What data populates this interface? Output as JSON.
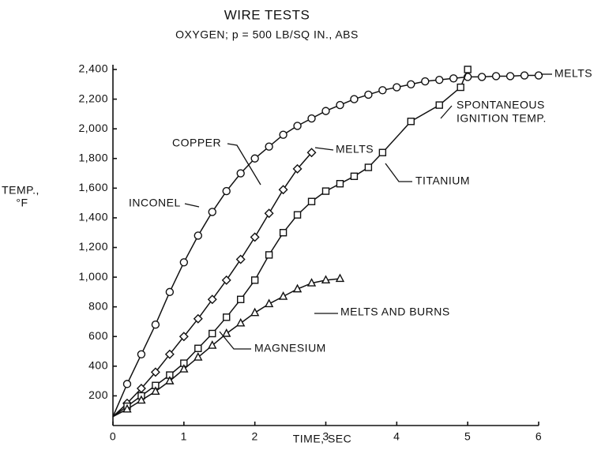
{
  "chart_data": {
    "type": "line",
    "title": "WIRE TESTS",
    "subtitle": "OXYGEN; p = 500 LB/SQ IN., ABS",
    "xlabel": "TIME, SEC",
    "ylabel": [
      "TEMP.,",
      "°F"
    ],
    "xlim": [
      0,
      6
    ],
    "xticks": [
      0,
      1,
      2,
      3,
      4,
      5,
      6
    ],
    "ylim": [
      0,
      2400
    ],
    "yticks": [
      200,
      400,
      600,
      800,
      {
        "value": 1000,
        "label": "1,000"
      },
      {
        "value": 1200,
        "label": "1,200"
      },
      {
        "value": 1400,
        "label": "1,400"
      },
      {
        "value": 1600,
        "label": "1,600"
      },
      {
        "value": 1800,
        "label": "1,800"
      },
      {
        "value": 2000,
        "label": "2,000"
      },
      {
        "value": 2200,
        "label": "2,200"
      },
      {
        "value": 2400,
        "label": "2,400"
      }
    ],
    "series": [
      {
        "name": "INCONEL",
        "color": "#111111",
        "marker": "circle",
        "x": [
          0,
          0.2,
          0.4,
          0.6,
          0.8,
          1.0,
          1.2,
          1.4,
          1.6,
          1.8,
          2.0,
          2.2,
          2.4,
          2.6,
          2.8,
          3.0,
          3.2,
          3.4,
          3.6,
          3.8,
          4.0,
          4.2,
          4.4,
          4.6,
          4.8,
          5.0,
          5.2,
          5.4,
          5.6,
          5.8,
          6.0
        ],
        "values": [
          60,
          280,
          480,
          680,
          900,
          1100,
          1280,
          1440,
          1580,
          1700,
          1800,
          1880,
          1960,
          2020,
          2070,
          2120,
          2160,
          2200,
          2230,
          2260,
          2280,
          2300,
          2320,
          2330,
          2340,
          2350,
          2350,
          2355,
          2355,
          2360,
          2360
        ]
      },
      {
        "name": "COPPER",
        "color": "#111111",
        "marker": "diamond",
        "x": [
          0,
          0.2,
          0.4,
          0.6,
          0.8,
          1.0,
          1.2,
          1.4,
          1.6,
          1.8,
          2.0,
          2.2,
          2.4,
          2.6,
          2.8
        ],
        "values": [
          60,
          150,
          250,
          360,
          480,
          600,
          720,
          850,
          980,
          1120,
          1270,
          1430,
          1590,
          1730,
          1840
        ]
      },
      {
        "name": "TITANIUM",
        "color": "#111111",
        "marker": "square",
        "x": [
          0,
          0.2,
          0.4,
          0.6,
          0.8,
          1.0,
          1.2,
          1.4,
          1.6,
          1.8,
          2.0,
          2.2,
          2.4,
          2.6,
          2.8,
          3.0,
          3.2,
          3.4,
          3.6,
          3.8,
          4.2,
          4.6,
          4.9,
          5.0
        ],
        "values": [
          60,
          130,
          200,
          270,
          340,
          420,
          520,
          620,
          730,
          850,
          980,
          1150,
          1300,
          1420,
          1510,
          1580,
          1630,
          1680,
          1740,
          1840,
          2050,
          2160,
          2280,
          2400
        ]
      },
      {
        "name": "MAGNESIUM",
        "color": "#111111",
        "marker": "triangle",
        "x": [
          0,
          0.2,
          0.4,
          0.6,
          0.8,
          1.0,
          1.2,
          1.4,
          1.6,
          1.8,
          2.0,
          2.2,
          2.4,
          2.6,
          2.8,
          3.0,
          3.2
        ],
        "values": [
          60,
          110,
          170,
          230,
          300,
          380,
          460,
          540,
          620,
          690,
          760,
          820,
          870,
          920,
          960,
          980,
          990
        ]
      }
    ],
    "annotations": [
      {
        "text": "MELTS"
      },
      {
        "text": "MELTS"
      },
      {
        "text": [
          "SPONTANEOUS",
          "IGNITION TEMP."
        ]
      },
      {
        "text": "MELTS AND BURNS"
      }
    ]
  }
}
